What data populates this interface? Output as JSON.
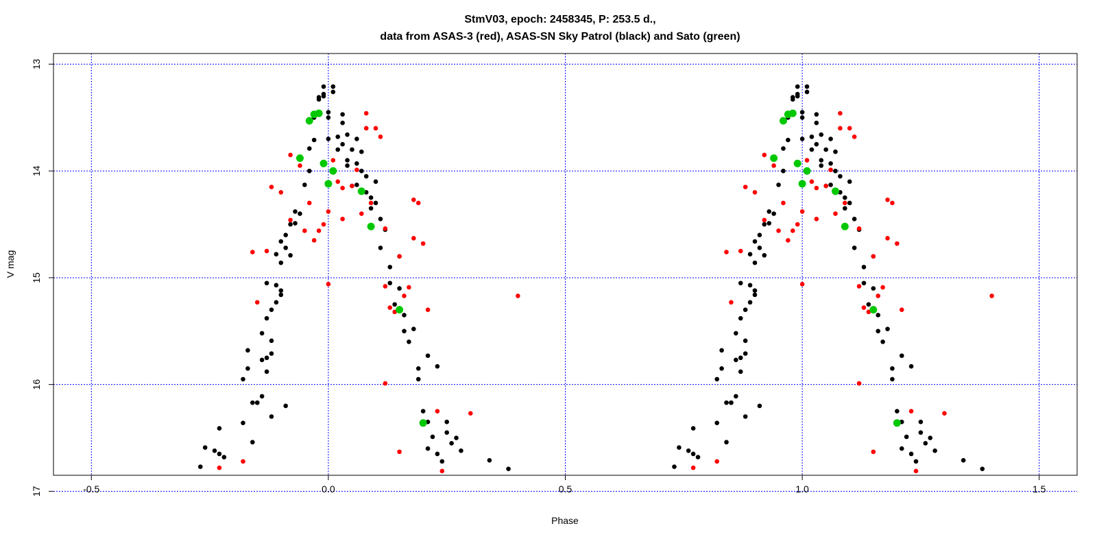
{
  "chart_data": {
    "type": "scatter",
    "title": "StmV03, epoch: 2458345, P: 253.5 d.,",
    "subtitle": "data from ASAS-3 (red), ASAS-SN Sky Patrol (black) and Sato (green)",
    "xlabel": "Phase",
    "ylabel": "V mag",
    "xlim": [
      -0.58,
      1.58
    ],
    "ylim": [
      16.85,
      12.9
    ],
    "y_inverted": true,
    "grid": true,
    "grid_color": "#0000ff",
    "x_ticks": [
      -0.5,
      0.0,
      0.5,
      1.0,
      1.5
    ],
    "x_tick_labels": [
      "-0.5",
      "0.0",
      "0.5",
      "1.0",
      "1.5"
    ],
    "y_ticks": [
      13,
      14,
      15,
      16,
      17
    ],
    "y_tick_labels": [
      "13",
      "14",
      "15",
      "16",
      "17"
    ],
    "phase_repeat": 1.0,
    "series": [
      {
        "color": "#000000",
        "points": [
          [
            -0.27,
            16.77
          ],
          [
            -0.26,
            16.59
          ],
          [
            -0.24,
            16.62
          ],
          [
            -0.23,
            16.65
          ],
          [
            -0.22,
            16.68
          ],
          [
            -0.23,
            16.41
          ],
          [
            -0.18,
            16.36
          ],
          [
            -0.18,
            15.95
          ],
          [
            -0.17,
            15.68
          ],
          [
            -0.17,
            15.85
          ],
          [
            -0.16,
            16.17
          ],
          [
            -0.16,
            16.54
          ],
          [
            -0.15,
            16.17
          ],
          [
            -0.15,
            16.17
          ],
          [
            -0.14,
            16.11
          ],
          [
            -0.14,
            15.77
          ],
          [
            -0.14,
            15.52
          ],
          [
            -0.13,
            15.88
          ],
          [
            -0.13,
            15.75
          ],
          [
            -0.13,
            15.38
          ],
          [
            -0.13,
            15.05
          ],
          [
            -0.12,
            15.71
          ],
          [
            -0.12,
            15.59
          ],
          [
            -0.12,
            15.3
          ],
          [
            -0.11,
            15.23
          ],
          [
            -0.11,
            15.07
          ],
          [
            -0.11,
            14.78
          ],
          [
            -0.1,
            15.12
          ],
          [
            -0.1,
            15.16
          ],
          [
            -0.1,
            14.86
          ],
          [
            -0.1,
            14.66
          ],
          [
            -0.09,
            14.72
          ],
          [
            -0.09,
            14.6
          ],
          [
            -0.08,
            14.79
          ],
          [
            -0.08,
            14.5
          ],
          [
            -0.07,
            14.49
          ],
          [
            -0.07,
            14.38
          ],
          [
            -0.06,
            14.4
          ],
          [
            -0.05,
            14.13
          ],
          [
            -0.04,
            14.0
          ],
          [
            -0.04,
            13.79
          ],
          [
            -0.03,
            13.71
          ],
          [
            -0.03,
            13.5
          ],
          [
            -0.02,
            13.31
          ],
          [
            -0.02,
            13.33
          ],
          [
            -0.01,
            13.21
          ],
          [
            -0.01,
            13.28
          ],
          [
            -0.01,
            13.3
          ],
          [
            0.0,
            13.45
          ],
          [
            0.0,
            13.5
          ],
          [
            0.0,
            13.7
          ],
          [
            0.01,
            13.21
          ],
          [
            0.01,
            13.26
          ],
          [
            0.02,
            13.68
          ],
          [
            0.02,
            13.8
          ],
          [
            0.03,
            13.47
          ],
          [
            0.03,
            13.55
          ],
          [
            0.03,
            13.75
          ],
          [
            0.04,
            13.66
          ],
          [
            0.04,
            13.9
          ],
          [
            0.04,
            13.95
          ],
          [
            0.05,
            13.8
          ],
          [
            0.05,
            14.14
          ],
          [
            0.06,
            13.7
          ],
          [
            0.06,
            13.93
          ],
          [
            0.06,
            14.13
          ],
          [
            0.07,
            13.82
          ],
          [
            0.07,
            14.0
          ],
          [
            0.08,
            14.05
          ],
          [
            0.08,
            14.2
          ],
          [
            0.09,
            14.25
          ],
          [
            0.09,
            14.35
          ],
          [
            0.1,
            14.1
          ],
          [
            0.1,
            14.3
          ],
          [
            0.11,
            14.45
          ],
          [
            0.11,
            14.72
          ],
          [
            0.12,
            14.55
          ],
          [
            0.13,
            14.9
          ],
          [
            0.13,
            15.05
          ],
          [
            0.14,
            15.25
          ],
          [
            0.15,
            14.8
          ],
          [
            0.15,
            15.1
          ],
          [
            0.16,
            15.35
          ],
          [
            0.16,
            15.5
          ],
          [
            0.17,
            15.6
          ],
          [
            0.18,
            15.48
          ],
          [
            0.19,
            15.85
          ],
          [
            0.19,
            15.95
          ],
          [
            0.2,
            16.25
          ],
          [
            0.21,
            16.35
          ],
          [
            0.21,
            16.6
          ],
          [
            0.22,
            16.49
          ],
          [
            0.23,
            16.65
          ],
          [
            0.24,
            16.72
          ],
          [
            0.25,
            16.35
          ],
          [
            0.25,
            16.45
          ],
          [
            0.26,
            16.55
          ],
          [
            0.27,
            16.5
          ],
          [
            0.28,
            16.62
          ],
          [
            0.34,
            16.71
          ],
          [
            0.38,
            16.79
          ],
          [
            -0.09,
            16.2
          ],
          [
            -0.12,
            16.3
          ],
          [
            0.23,
            15.83
          ],
          [
            0.21,
            15.73
          ]
        ]
      },
      {
        "color": "#ff0000",
        "points": [
          [
            -0.23,
            16.78
          ],
          [
            -0.18,
            16.72
          ],
          [
            -0.16,
            14.76
          ],
          [
            -0.15,
            15.23
          ],
          [
            -0.13,
            14.75
          ],
          [
            -0.12,
            14.15
          ],
          [
            -0.1,
            14.2
          ],
          [
            -0.08,
            14.46
          ],
          [
            -0.08,
            13.85
          ],
          [
            -0.06,
            13.95
          ],
          [
            -0.05,
            14.56
          ],
          [
            -0.04,
            14.3
          ],
          [
            -0.03,
            14.65
          ],
          [
            -0.02,
            14.56
          ],
          [
            -0.01,
            14.5
          ],
          [
            0.0,
            14.38
          ],
          [
            0.0,
            15.06
          ],
          [
            0.01,
            13.9
          ],
          [
            0.02,
            14.1
          ],
          [
            0.03,
            14.16
          ],
          [
            0.03,
            14.45
          ],
          [
            0.05,
            14.14
          ],
          [
            0.06,
            13.99
          ],
          [
            0.07,
            14.4
          ],
          [
            0.08,
            13.46
          ],
          [
            0.08,
            13.6
          ],
          [
            0.09,
            14.3
          ],
          [
            0.1,
            13.6
          ],
          [
            0.11,
            13.68
          ],
          [
            0.12,
            14.54
          ],
          [
            0.12,
            15.08
          ],
          [
            0.13,
            15.28
          ],
          [
            0.14,
            15.32
          ],
          [
            0.15,
            14.8
          ],
          [
            0.16,
            15.17
          ],
          [
            0.17,
            15.09
          ],
          [
            0.18,
            14.63
          ],
          [
            0.2,
            14.68
          ],
          [
            0.21,
            15.3
          ],
          [
            0.23,
            16.25
          ],
          [
            0.24,
            16.81
          ],
          [
            0.3,
            16.27
          ],
          [
            0.4,
            15.17
          ],
          [
            0.18,
            14.27
          ],
          [
            0.19,
            14.3
          ],
          [
            0.12,
            15.99
          ],
          [
            0.15,
            16.63
          ]
        ]
      },
      {
        "color": "#00c800",
        "size": "large",
        "points": [
          [
            -0.04,
            13.53
          ],
          [
            -0.03,
            13.47
          ],
          [
            -0.02,
            13.46
          ],
          [
            -0.06,
            13.88
          ],
          [
            -0.01,
            13.93
          ],
          [
            0.01,
            14.0
          ],
          [
            0.0,
            14.12
          ],
          [
            0.07,
            14.19
          ],
          [
            0.09,
            14.52
          ],
          [
            0.15,
            15.3
          ],
          [
            0.2,
            16.36
          ]
        ]
      }
    ]
  }
}
